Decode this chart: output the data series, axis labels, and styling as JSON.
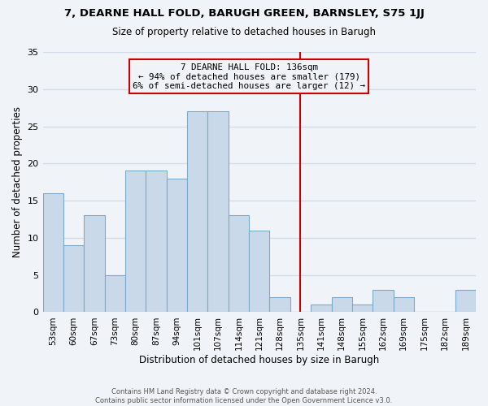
{
  "title": "7, DEARNE HALL FOLD, BARUGH GREEN, BARNSLEY, S75 1JJ",
  "subtitle": "Size of property relative to detached houses in Barugh",
  "xlabel": "Distribution of detached houses by size in Barugh",
  "ylabel": "Number of detached properties",
  "bar_labels": [
    "53sqm",
    "60sqm",
    "67sqm",
    "73sqm",
    "80sqm",
    "87sqm",
    "94sqm",
    "101sqm",
    "107sqm",
    "114sqm",
    "121sqm",
    "128sqm",
    "135sqm",
    "141sqm",
    "148sqm",
    "155sqm",
    "162sqm",
    "169sqm",
    "175sqm",
    "182sqm",
    "189sqm"
  ],
  "bar_values": [
    16,
    9,
    13,
    5,
    19,
    19,
    18,
    27,
    27,
    13,
    11,
    2,
    0,
    1,
    2,
    1,
    3,
    2,
    0,
    0,
    3
  ],
  "bar_color": "#c9d9ea",
  "bar_edge_color": "#7aaac8",
  "vline_idx": 12,
  "vline_color": "#cc0000",
  "annotation_line1": "7 DEARNE HALL FOLD: 136sqm",
  "annotation_line2": "← 94% of detached houses are smaller (179)",
  "annotation_line3": "6% of semi-detached houses are larger (12) →",
  "annotation_box_edge_color": "#cc0000",
  "ylim": [
    0,
    35
  ],
  "yticks": [
    0,
    5,
    10,
    15,
    20,
    25,
    30,
    35
  ],
  "footnote_line1": "Contains HM Land Registry data © Crown copyright and database right 2024.",
  "footnote_line2": "Contains public sector information licensed under the Open Government Licence v3.0.",
  "background_color": "#f0f4f8",
  "grid_color": "#d0dce8"
}
